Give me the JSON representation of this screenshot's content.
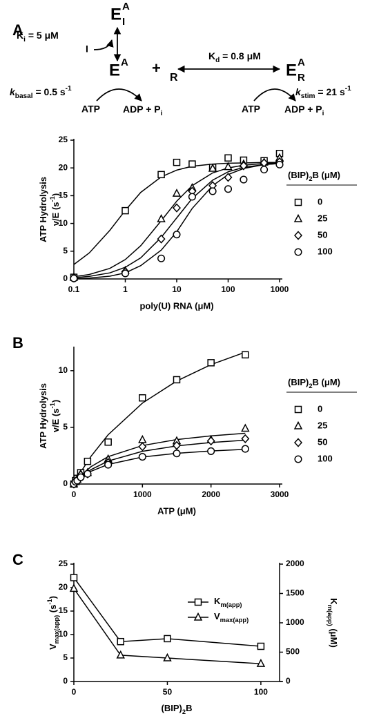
{
  "panel_labels": [
    "A",
    "B",
    "C"
  ],
  "scheme": {
    "inhibited_complex": {
      "base": "E",
      "sup": "A",
      "sub": "I"
    },
    "ki": [
      "K",
      {
        "sub": "i"
      },
      " = 5 μM"
    ],
    "inhibitor": "I",
    "enzyme": {
      "base": "E",
      "sup": "A"
    },
    "plus": "+",
    "rna": "R",
    "kd": [
      "K",
      {
        "sub": "d"
      },
      " = 0.8 μM"
    ],
    "rna_complex": {
      "base": "E",
      "sup": "A",
      "sub": "R"
    },
    "k_basal": [
      {
        "italic": "k"
      },
      {
        "sub": "basal"
      },
      " = 0.5 s",
      {
        "sup": "-1"
      }
    ],
    "atp_left": "ATP",
    "products_left": [
      "ADP + P",
      {
        "sub": "i"
      }
    ],
    "atp_right": "ATP",
    "products_right": [
      "ADP + P",
      {
        "sub": "i"
      }
    ],
    "k_stim": [
      {
        "italic": "k"
      },
      {
        "sub": "stim"
      },
      " = 21 s",
      {
        "sup": "-1"
      }
    ]
  },
  "chart_data": [
    {
      "type": "scatter",
      "xscale": "log",
      "xlabel": "poly(U) RNA (μM)",
      "ylabel": [
        [
          "ATP Hydrolysis"
        ],
        [
          "v/E (s",
          {
            "sup": "-1"
          },
          ")"
        ]
      ],
      "legend_title": [
        "(BIP)",
        {
          "sub": "2"
        },
        "B (μM)"
      ],
      "xlim": [
        0.1,
        1000
      ],
      "xticks": [
        0.1,
        1,
        10,
        100,
        1000
      ],
      "ylim": [
        0,
        25
      ],
      "yticks": [
        0,
        5,
        10,
        15,
        20,
        25
      ],
      "x": [
        0.1,
        1,
        5,
        10,
        20,
        50,
        100,
        200,
        500,
        1000
      ],
      "fit_x": [
        0.1,
        0.2,
        0.5,
        1,
        2,
        5,
        10,
        20,
        50,
        100,
        200,
        500,
        1000
      ],
      "series": [
        {
          "name": "0",
          "marker": "square",
          "color": "#000000",
          "values": [
            0.3,
            12.3,
            18.8,
            21,
            20.7,
            20.1,
            21.8,
            21.4,
            21.3,
            22.6
          ],
          "fit_values": [
            2.6,
            4.7,
            8.75,
            12.35,
            15.6,
            18.4,
            19.6,
            20.3,
            20.7,
            20.85,
            20.9,
            21,
            21
          ]
        },
        {
          "name": "25",
          "marker": "triangle",
          "color": "#000000",
          "values": [
            0.3,
            1.5,
            10.8,
            15.4,
            16.4,
            19.9,
            20.2,
            20.7,
            21,
            21.8
          ],
          "fit_values": [
            0.41,
            0.81,
            1.9,
            3.5,
            6,
            10.5,
            14,
            16.8,
            19.1,
            20,
            20.5,
            20.8,
            20.9
          ]
        },
        {
          "name": "50",
          "marker": "diamond",
          "color": "#000000",
          "values": [
            0.2,
            1.3,
            7.2,
            12.8,
            15.8,
            16.8,
            18.3,
            20.4,
            20.9,
            21.1
          ],
          "fit_values": [
            0.23,
            0.46,
            1.1,
            2.1,
            3.8,
            7.5,
            11,
            14.5,
            17.8,
            19.3,
            20.1,
            20.6,
            20.8
          ]
        },
        {
          "name": "100",
          "marker": "circle",
          "color": "#000000",
          "values": [
            0.1,
            1,
            3.7,
            8,
            14.8,
            15.8,
            16.2,
            17.9,
            19.7,
            20.6
          ],
          "fit_values": [
            0.05,
            0.15,
            0.5,
            1.1,
            2.4,
            5.2,
            8.5,
            12.7,
            16.8,
            18.8,
            19.9,
            20.6,
            20.8
          ]
        }
      ]
    },
    {
      "type": "scatter",
      "xlabel": "ATP (μM)",
      "ylabel": [
        [
          "ATP Hydrolysis"
        ],
        [
          "v/E (s",
          {
            "sup": "-1"
          },
          ")"
        ]
      ],
      "legend_title": [
        "(BIP)",
        {
          "sub": "2"
        },
        "B (μM)"
      ],
      "xlim": [
        0,
        3000
      ],
      "xticks": [
        0,
        1000,
        2000,
        3000
      ],
      "ylim": [
        0,
        12
      ],
      "yticks": [
        0,
        5,
        10
      ],
      "x": [
        0,
        25,
        50,
        100,
        200,
        500,
        1000,
        1500,
        2000,
        2500
      ],
      "fit_x": [
        0,
        100,
        250,
        500,
        1000,
        1500,
        2000,
        2500
      ],
      "series": [
        {
          "name": "0",
          "marker": "square",
          "color": "#000000",
          "values": [
            0,
            0.3,
            0.5,
            1,
            2,
            3.7,
            7.6,
            9.2,
            10.7,
            11.4
          ],
          "fit_values": [
            0,
            1.05,
            2.44,
            4.35,
            7.14,
            9.09,
            10.53,
            11.63
          ]
        },
        {
          "name": "25",
          "marker": "triangle",
          "color": "#000000",
          "values": [
            0,
            0.2,
            0.4,
            0.9,
            1,
            2.2,
            3.9,
            3.8,
            3.9,
            4.9
          ],
          "fit_values": [
            0,
            0.73,
            1.53,
            2.42,
            3.39,
            3.92,
            4.25,
            4.48
          ]
        },
        {
          "name": "50",
          "marker": "diamond",
          "color": "#000000",
          "values": [
            0,
            0.2,
            0.4,
            0.8,
            0.9,
            1.9,
            3.3,
            3.4,
            3.8,
            4
          ],
          "fit_values": [
            0,
            0.6,
            1.27,
            2.03,
            2.89,
            3.36,
            3.66,
            3.87
          ]
        },
        {
          "name": "100",
          "marker": "circle",
          "color": "#000000",
          "values": [
            0,
            0.2,
            0.3,
            0.6,
            0.9,
            1.7,
            2.4,
            2.7,
            2.9,
            3.1
          ],
          "fit_values": [
            0,
            0.54,
            1.12,
            1.73,
            2.38,
            2.71,
            2.92,
            3.06
          ]
        }
      ]
    },
    {
      "type": "line",
      "xlabel": [
        "(BIP)",
        {
          "sub": "2"
        },
        "B"
      ],
      "ylabel": [
        [
          "V",
          {
            "sub": "max(app)"
          },
          " (s",
          {
            "sup": "-1"
          },
          ")"
        ]
      ],
      "y2label": [
        [
          "K",
          {
            "sub": "m(app)"
          },
          " (μM)"
        ]
      ],
      "xlim": [
        0,
        110
      ],
      "xticks": [
        0,
        50,
        100
      ],
      "ylim": [
        0,
        25
      ],
      "yticks": [
        0,
        5,
        10,
        15,
        20,
        25
      ],
      "y2lim": [
        0,
        2000
      ],
      "y2ticks": [
        0,
        500,
        1000,
        1500,
        2000
      ],
      "x": [
        0,
        25,
        50,
        100
      ],
      "series": [
        {
          "name": [
            "K",
            {
              "sub": "m(app)"
            }
          ],
          "marker": "square",
          "color": "#000000",
          "axis": "y2",
          "values": [
            1770,
            680,
            730,
            600
          ]
        },
        {
          "name": [
            "V",
            {
              "sub": "max(app)"
            }
          ],
          "marker": "triangle",
          "color": "#000000",
          "values": [
            19.8,
            5.6,
            5,
            3.8
          ]
        }
      ]
    }
  ]
}
